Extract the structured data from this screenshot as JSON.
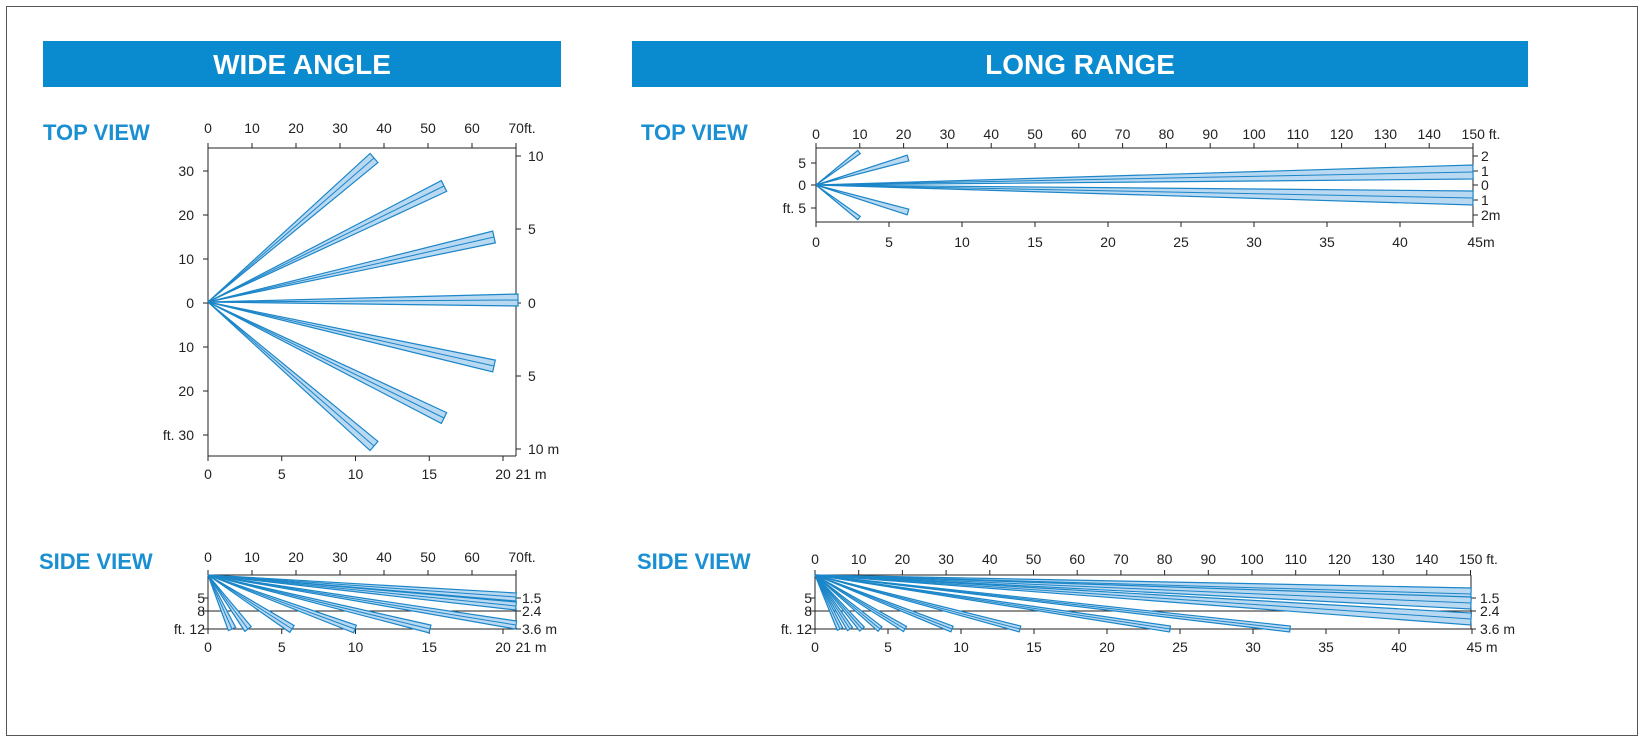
{
  "colors": {
    "accent": "#0a8bd0",
    "label": "#1a8fd2",
    "beam_fill": "#b9d8f2",
    "beam_stroke": "#1b86c8"
  },
  "wide": {
    "title": "WIDE ANGLE",
    "top_label": "TOP VIEW",
    "side_label": "SIDE VIEW",
    "top": {
      "ft_ticks": [
        "0",
        "10",
        "20",
        "30",
        "40",
        "50",
        "60",
        "70ft."
      ],
      "m_ticks": [
        "0",
        "5",
        "10",
        "15",
        "20",
        "21 m"
      ],
      "left_ticks": [
        "30",
        "20",
        "10",
        "0",
        "10",
        "20",
        "ft. 30"
      ],
      "right_ticks": [
        "10",
        "5",
        "0",
        "5",
        "10 m"
      ]
    },
    "side": {
      "ft_ticks": [
        "0",
        "10",
        "20",
        "30",
        "40",
        "50",
        "60",
        "70ft."
      ],
      "m_ticks": [
        "0",
        "5",
        "10",
        "15",
        "20",
        "21 m"
      ],
      "left_ticks": [
        "5",
        "8",
        "ft. 12"
      ],
      "right_ticks": [
        "1.5",
        "2.4",
        "3.6 m"
      ]
    }
  },
  "long": {
    "title": "LONG RANGE",
    "top_label": "TOP VIEW",
    "side_label": "SIDE VIEW",
    "top": {
      "ft_ticks": [
        "0",
        "10",
        "20",
        "30",
        "40",
        "50",
        "60",
        "70",
        "80",
        "90",
        "100",
        "110",
        "120",
        "130",
        "140",
        "150 ft."
      ],
      "m_ticks": [
        "0",
        "5",
        "10",
        "15",
        "20",
        "25",
        "30",
        "35",
        "40",
        "45m"
      ],
      "left_ticks": [
        "5",
        "0",
        "ft. 5"
      ],
      "right_ticks": [
        "2",
        "1",
        "0",
        "1",
        "2m"
      ]
    },
    "side": {
      "ft_ticks": [
        "0",
        "10",
        "20",
        "30",
        "40",
        "50",
        "60",
        "70",
        "80",
        "90",
        "100",
        "110",
        "120",
        "130",
        "140",
        "150 ft."
      ],
      "m_ticks": [
        "0",
        "5",
        "10",
        "15",
        "20",
        "25",
        "30",
        "35",
        "40",
        "45 m"
      ],
      "left_ticks": [
        "5",
        "8",
        "ft. 12"
      ],
      "right_ticks": [
        "1.5",
        "2.4",
        "3.6 m"
      ]
    }
  }
}
